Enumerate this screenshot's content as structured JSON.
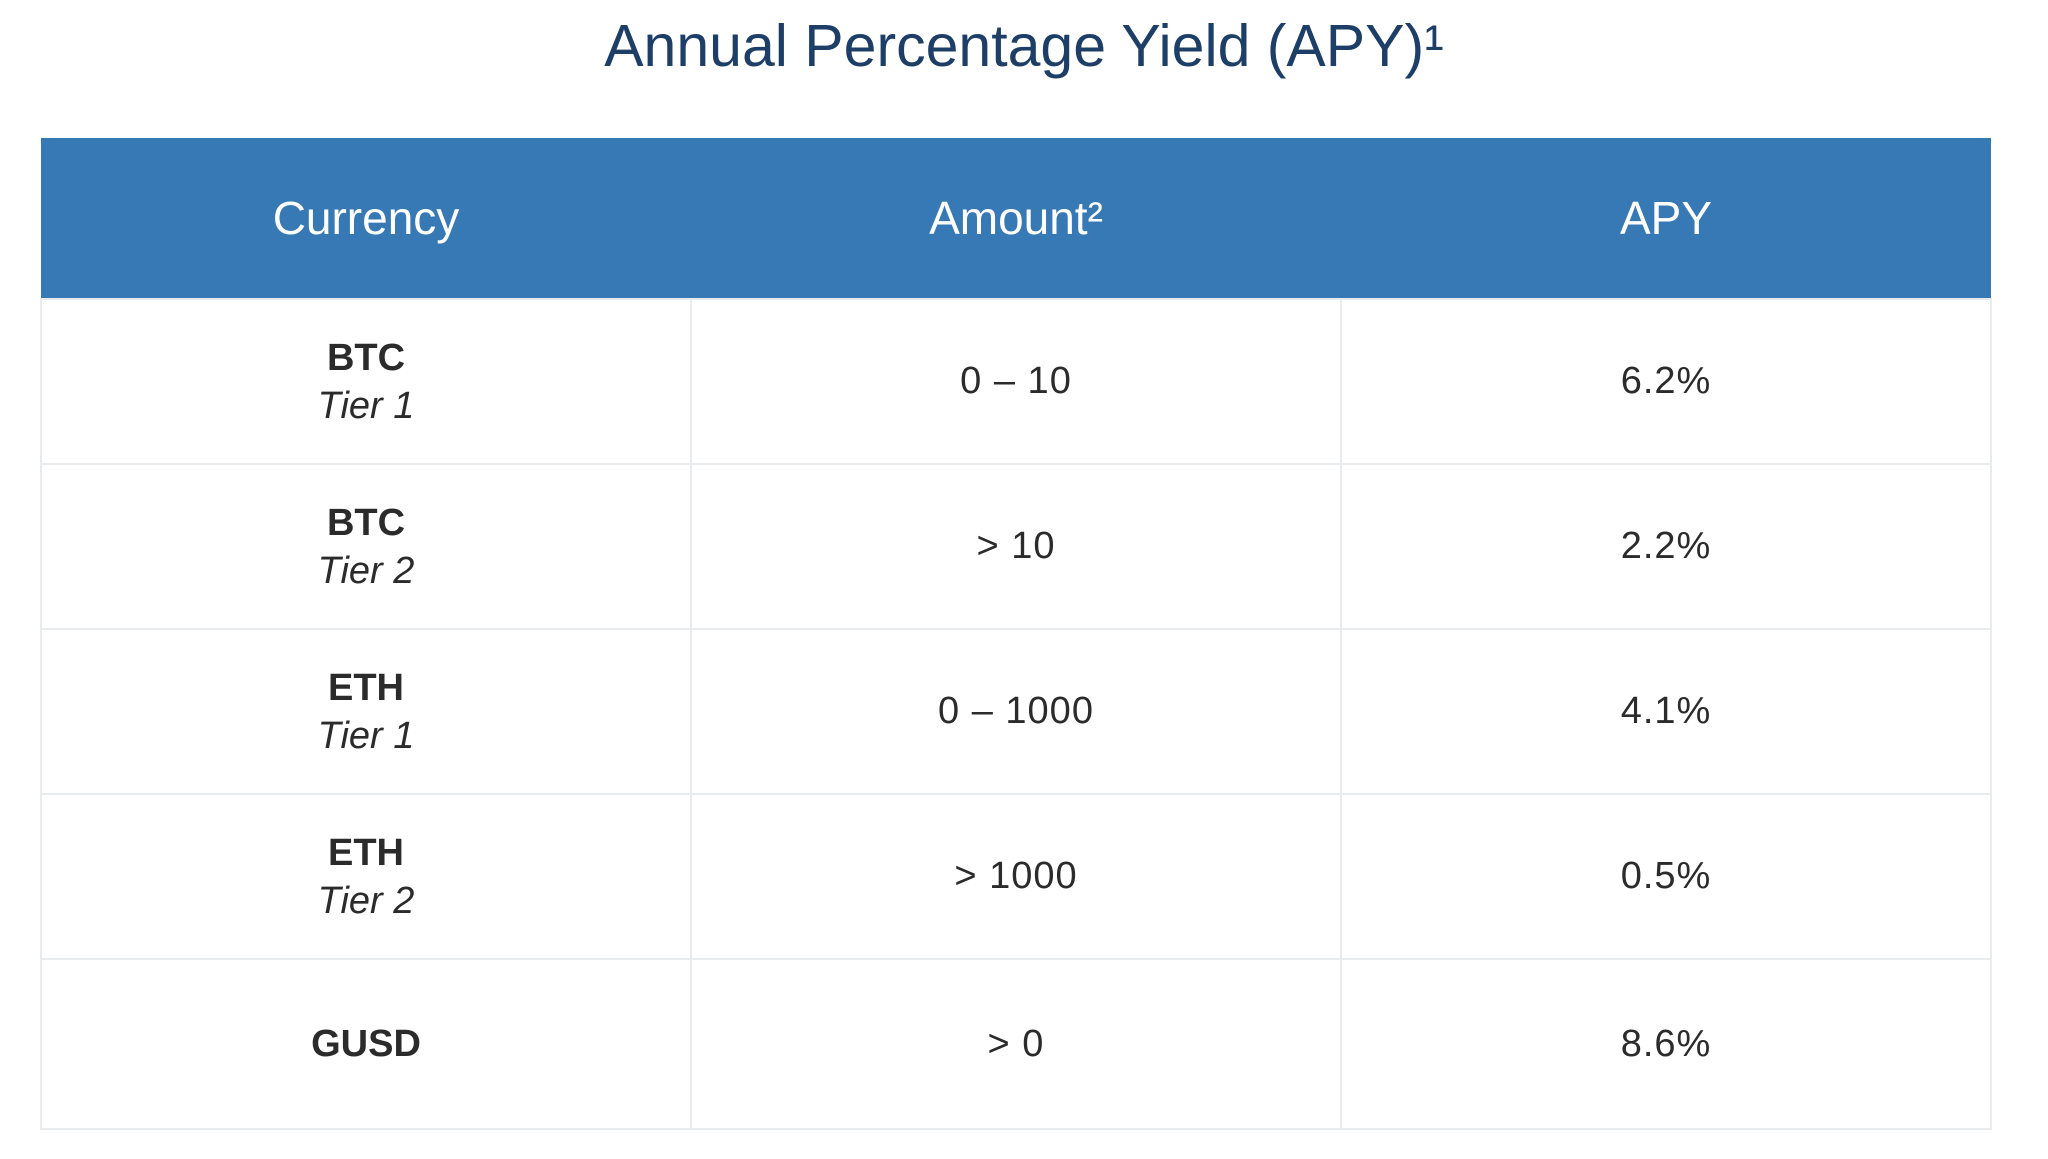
{
  "page": {
    "title": "Annual Percentage Yield (APY)¹"
  },
  "table": {
    "headers": {
      "currency": "Currency",
      "amount": "Amount²",
      "apy": "APY"
    },
    "rows": [
      {
        "currency": "BTC",
        "tier": "Tier 1",
        "amount": "0 – 10",
        "apy": "6.2%"
      },
      {
        "currency": "BTC",
        "tier": "Tier 2",
        "amount": "> 10",
        "apy": "2.2%"
      },
      {
        "currency": "ETH",
        "tier": "Tier 1",
        "amount": "0 – 1000",
        "apy": "4.1%"
      },
      {
        "currency": "ETH",
        "tier": "Tier 2",
        "amount": "> 1000",
        "apy": "0.5%"
      },
      {
        "currency": "GUSD",
        "tier": "",
        "amount": "> 0",
        "apy": "8.6%"
      }
    ]
  },
  "colors": {
    "title": "#1d3e67",
    "header_background": "#3779b5",
    "header_text": "#ffffff",
    "cell_border": "#e9ecef"
  }
}
